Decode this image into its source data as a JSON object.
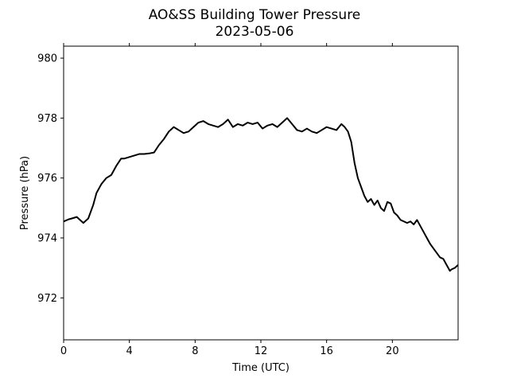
{
  "chart_data": {
    "type": "line",
    "title": "AO&SS Building Tower Pressure",
    "subtitle": "2023-05-06",
    "xlabel": "Time (UTC)",
    "ylabel": "Pressure (hPa)",
    "xlim": [
      0,
      24
    ],
    "ylim": [
      970.6,
      980.4
    ],
    "xticks": [
      0,
      4,
      8,
      12,
      16,
      20
    ],
    "yticks": [
      972,
      974,
      976,
      978,
      980
    ],
    "grid": false,
    "line_color": "#000000",
    "series": [
      {
        "x": [
          0,
          0.3,
          0.5,
          0.8,
          1.0,
          1.2,
          1.5,
          1.8,
          2.0,
          2.3,
          2.6,
          2.9,
          3.2,
          3.5,
          3.7,
          4.0,
          4.3,
          4.6,
          4.9,
          5.2,
          5.5,
          5.8,
          6.1,
          6.4,
          6.7,
          7.0,
          7.3,
          7.6,
          7.9,
          8.2,
          8.5,
          8.8,
          9.1,
          9.4,
          9.7,
          10.0,
          10.3,
          10.6,
          10.9,
          11.2,
          11.5,
          11.8,
          12.1,
          12.4,
          12.7,
          13.0,
          13.3,
          13.6,
          13.9,
          14.2,
          14.5,
          14.8,
          15.1,
          15.4,
          15.7,
          16.0,
          16.3,
          16.6,
          16.9,
          17.1,
          17.3,
          17.5,
          17.7,
          17.9,
          18.1,
          18.3,
          18.5,
          18.7,
          18.9,
          19.1,
          19.3,
          19.5,
          19.7,
          19.9,
          20.1,
          20.3,
          20.5,
          20.7,
          20.9,
          21.1,
          21.3,
          21.5,
          21.7,
          21.9,
          22.1,
          22.3,
          22.5,
          22.7,
          22.9,
          23.1,
          23.3,
          23.5,
          23.6,
          23.8,
          24.0
        ],
        "y": [
          974.55,
          974.62,
          974.65,
          974.7,
          974.6,
          974.5,
          974.65,
          975.1,
          975.5,
          975.8,
          976.0,
          976.1,
          976.4,
          976.65,
          976.65,
          976.7,
          976.75,
          976.8,
          976.8,
          976.82,
          976.85,
          977.1,
          977.3,
          977.55,
          977.7,
          977.6,
          977.5,
          977.55,
          977.7,
          977.85,
          977.9,
          977.8,
          977.75,
          977.7,
          977.8,
          977.95,
          977.7,
          977.8,
          977.75,
          977.85,
          977.8,
          977.85,
          977.65,
          977.75,
          977.8,
          977.7,
          977.85,
          978.0,
          977.8,
          977.6,
          977.55,
          977.65,
          977.55,
          977.5,
          977.6,
          977.7,
          977.65,
          977.6,
          977.8,
          977.7,
          977.55,
          977.2,
          976.5,
          976.0,
          975.7,
          975.4,
          975.2,
          975.3,
          975.1,
          975.25,
          975.0,
          974.9,
          975.2,
          975.15,
          974.85,
          974.75,
          974.6,
          974.55,
          974.5,
          974.55,
          974.45,
          974.6,
          974.4,
          974.2,
          974.0,
          973.8,
          973.65,
          973.5,
          973.35,
          973.3,
          973.1,
          972.9,
          972.95,
          973.0,
          973.1
        ]
      }
    ]
  }
}
